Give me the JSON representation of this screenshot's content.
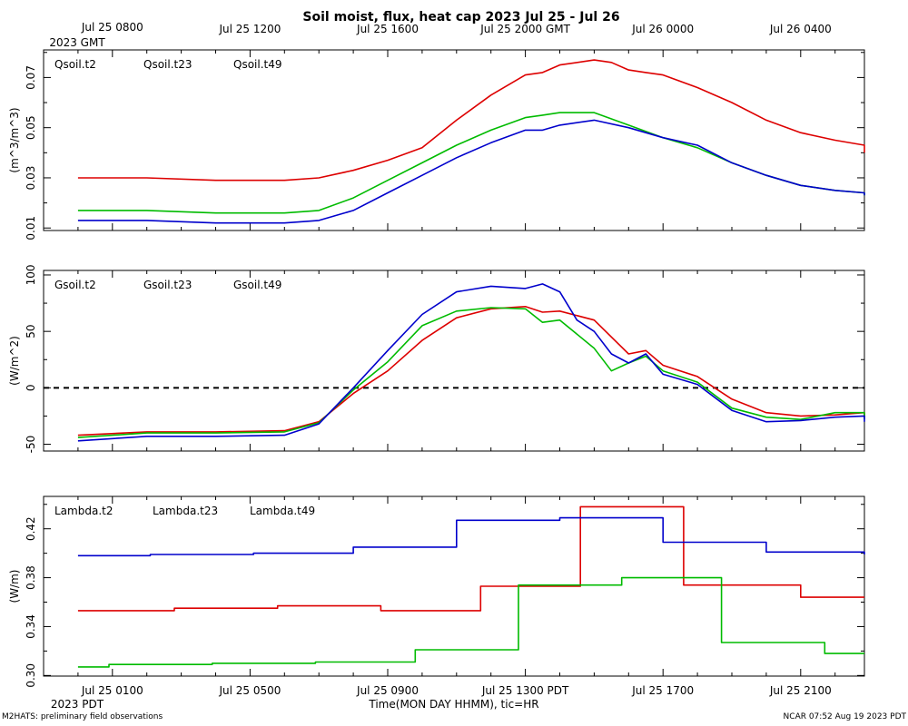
{
  "title": "Soil moist, flux, heat cap 2023 Jul 25 - Jul 26",
  "top_axis": {
    "labels": [
      "Jul 25 0800",
      "Jul 25 1200",
      "Jul 25 1600",
      "Jul 25 2000 GMT",
      "Jul 26 0000",
      "Jul 26 0400"
    ],
    "start_sub": "2023 GMT"
  },
  "bottom_axis": {
    "labels": [
      "Jul 25 0100",
      "Jul 25 0500",
      "Jul 25 0900",
      "Jul 25 1300 PDT",
      "Jul 25 1700",
      "Jul 25 2100"
    ],
    "start_sub": "2023 PDT",
    "title": "Time(MON DAY HHMM), tic=HR"
  },
  "footer": {
    "left": "M2HATS: preliminary field observations",
    "right": "NCAR 07:52 Aug 19 2023 PDT"
  },
  "colors": {
    "red": "#dd0000",
    "green": "#00bb00",
    "blue": "#0000cc"
  },
  "chart_data": [
    {
      "type": "line",
      "ylabel": "(m^3/m^3)",
      "ylim": [
        0.009,
        0.081
      ],
      "yticks": [
        0.01,
        0.03,
        0.05,
        0.07
      ],
      "ytick_labels": [
        "0.01",
        "0.03",
        "0.05",
        "0.07"
      ],
      "xlim_hours_pdt": [
        0,
        24
      ],
      "series": [
        {
          "name": "Qsoil.t2",
          "color": "red",
          "x": [
            0,
            2,
            4,
            6,
            7,
            8,
            9,
            10,
            11,
            12,
            13,
            13.5,
            14,
            15,
            15.5,
            16,
            16.5,
            17,
            18,
            19,
            20,
            21,
            22,
            23,
            24
          ],
          "y": [
            0.03,
            0.03,
            0.029,
            0.029,
            0.03,
            0.033,
            0.037,
            0.042,
            0.053,
            0.063,
            0.071,
            0.072,
            0.075,
            0.077,
            0.076,
            0.073,
            0.072,
            0.071,
            0.066,
            0.06,
            0.053,
            0.048,
            0.045,
            0.043,
            0.04
          ]
        },
        {
          "name": "Qsoil.t23",
          "color": "green",
          "x": [
            0,
            2,
            4,
            6,
            7,
            8,
            9,
            10,
            11,
            12,
            13,
            13.5,
            14,
            15,
            16,
            17,
            18,
            19,
            20,
            21,
            22,
            23,
            24
          ],
          "y": [
            0.017,
            0.017,
            0.016,
            0.016,
            0.017,
            0.022,
            0.029,
            0.036,
            0.043,
            0.049,
            0.054,
            0.055,
            0.056,
            0.056,
            0.051,
            0.046,
            0.042,
            0.036,
            0.031,
            0.027,
            0.025,
            0.024,
            0.023
          ]
        },
        {
          "name": "Qsoil.t49",
          "color": "blue",
          "x": [
            0,
            2,
            4,
            6,
            7,
            8,
            9,
            10,
            11,
            12,
            13,
            13.5,
            14,
            15,
            16,
            17,
            18,
            19,
            20,
            21,
            22,
            23,
            24
          ],
          "y": [
            0.013,
            0.013,
            0.012,
            0.012,
            0.013,
            0.017,
            0.024,
            0.031,
            0.038,
            0.044,
            0.049,
            0.049,
            0.051,
            0.053,
            0.05,
            0.046,
            0.043,
            0.036,
            0.031,
            0.027,
            0.025,
            0.024,
            0.023
          ]
        }
      ]
    },
    {
      "type": "line",
      "ylabel": "(W/m^2)",
      "ylim": [
        -56,
        104
      ],
      "yticks": [
        -50,
        0,
        50,
        100
      ],
      "ytick_labels": [
        "-50",
        "0",
        "50",
        "100"
      ],
      "zero_line": true,
      "xlim_hours_pdt": [
        0,
        24
      ],
      "series": [
        {
          "name": "Gsoil.t2",
          "color": "red",
          "x": [
            0,
            2,
            4,
            6,
            7,
            8,
            9,
            10,
            11,
            12,
            13,
            13.5,
            14,
            15,
            16,
            16.5,
            17,
            18,
            19,
            20,
            21,
            22,
            23,
            24
          ],
          "y": [
            -42,
            -39,
            -39,
            -38,
            -30,
            -5,
            15,
            42,
            62,
            70,
            72,
            67,
            68,
            60,
            30,
            33,
            20,
            10,
            -10,
            -22,
            -25,
            -24,
            -22,
            -26
          ]
        },
        {
          "name": "Gsoil.t23",
          "color": "green",
          "x": [
            0,
            2,
            4,
            6,
            7,
            8,
            9,
            10,
            11,
            12,
            13,
            13.5,
            14,
            15,
            15.5,
            16,
            16.5,
            17,
            18,
            19,
            20,
            21,
            22,
            23,
            24
          ],
          "y": [
            -44,
            -40,
            -40,
            -39,
            -31,
            -2,
            23,
            55,
            68,
            71,
            70,
            58,
            60,
            35,
            15,
            22,
            28,
            15,
            5,
            -18,
            -26,
            -28,
            -22,
            -22,
            -28
          ]
        },
        {
          "name": "Gsoil.t49",
          "color": "blue",
          "x": [
            0,
            2,
            4,
            6,
            7,
            8,
            9,
            10,
            11,
            12,
            13,
            13.5,
            14,
            14.5,
            15,
            15.5,
            16,
            16.5,
            17,
            18,
            19,
            20,
            21,
            22,
            23,
            24
          ],
          "y": [
            -47,
            -43,
            -43,
            -42,
            -32,
            0,
            33,
            65,
            85,
            90,
            88,
            92,
            85,
            60,
            50,
            30,
            22,
            30,
            12,
            3,
            -20,
            -30,
            -29,
            -26,
            -25,
            -30
          ]
        }
      ]
    },
    {
      "type": "line",
      "ylabel": "(W/m)",
      "ylim": [
        0.2995,
        0.4465
      ],
      "yticks": [
        0.3,
        0.34,
        0.38,
        0.42
      ],
      "ytick_labels": [
        "0.30",
        "0.34",
        "0.38",
        "0.42"
      ],
      "xlim_hours_pdt": [
        0,
        24
      ],
      "series": [
        {
          "name": "Lambda.t2",
          "color": "red",
          "x": [
            0,
            2.8,
            2.8,
            5.8,
            5.8,
            8.8,
            8.8,
            11.7,
            11.7,
            14.6,
            14.6,
            17.6,
            17.6,
            21.0,
            21.0,
            24
          ],
          "y": [
            0.353,
            0.353,
            0.355,
            0.355,
            0.357,
            0.357,
            0.353,
            0.353,
            0.373,
            0.373,
            0.438,
            0.438,
            0.374,
            0.374,
            0.364,
            0.364
          ]
        },
        {
          "name": "Lambda.t23",
          "color": "green",
          "x": [
            0,
            0.9,
            0.9,
            3.9,
            3.9,
            6.9,
            6.9,
            9.8,
            9.8,
            12.8,
            12.8,
            15.8,
            15.8,
            18.7,
            18.7,
            21.7,
            21.7,
            24
          ],
          "y": [
            0.307,
            0.307,
            0.309,
            0.309,
            0.31,
            0.31,
            0.311,
            0.311,
            0.321,
            0.321,
            0.374,
            0.374,
            0.38,
            0.38,
            0.327,
            0.327,
            0.318,
            0.318
          ]
        },
        {
          "name": "Lambda.t49",
          "color": "blue",
          "x": [
            0,
            2.1,
            2.1,
            5.1,
            5.1,
            8.0,
            8.0,
            11.0,
            11.0,
            14.0,
            14.0,
            17.0,
            17.0,
            20.0,
            20.0,
            23.0,
            23.0,
            24
          ],
          "y": [
            0.398,
            0.398,
            0.399,
            0.399,
            0.4,
            0.4,
            0.405,
            0.405,
            0.427,
            0.427,
            0.429,
            0.429,
            0.409,
            0.409,
            0.401,
            0.401,
            0.399,
            0.399
          ]
        }
      ]
    }
  ]
}
